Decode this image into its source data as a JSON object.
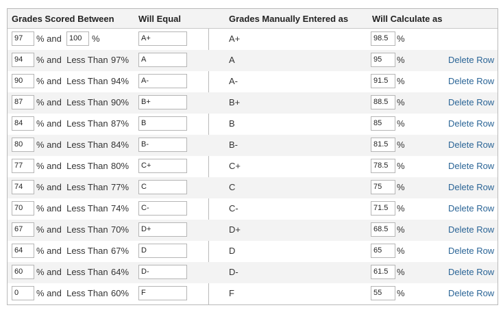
{
  "headers": {
    "scored_between": "Grades Scored Between",
    "will_equal": "Will Equal",
    "manually_entered": "Grades Manually Entered as",
    "will_calculate": "Will Calculate as"
  },
  "pct_and": "% and",
  "pct_and_less_than": "% and  Less Than",
  "pct_sign": "%",
  "rows": [
    {
      "low": "97",
      "high": "100",
      "less_than": "",
      "grade": "A+",
      "manual": "A+",
      "calc": "98.5",
      "delete": ""
    },
    {
      "low": "94",
      "high": "",
      "less_than": "97%",
      "grade": "A",
      "manual": "A",
      "calc": "95",
      "delete": "Delete Row"
    },
    {
      "low": "90",
      "high": "",
      "less_than": "94%",
      "grade": "A-",
      "manual": "A-",
      "calc": "91.5",
      "delete": "Delete Row"
    },
    {
      "low": "87",
      "high": "",
      "less_than": "90%",
      "grade": "B+",
      "manual": "B+",
      "calc": "88.5",
      "delete": "Delete Row"
    },
    {
      "low": "84",
      "high": "",
      "less_than": "87%",
      "grade": "B",
      "manual": "B",
      "calc": "85",
      "delete": "Delete Row"
    },
    {
      "low": "80",
      "high": "",
      "less_than": "84%",
      "grade": "B-",
      "manual": "B-",
      "calc": "81.5",
      "delete": "Delete Row"
    },
    {
      "low": "77",
      "high": "",
      "less_than": "80%",
      "grade": "C+",
      "manual": "C+",
      "calc": "78.5",
      "delete": "Delete Row"
    },
    {
      "low": "74",
      "high": "",
      "less_than": "77%",
      "grade": "C",
      "manual": "C",
      "calc": "75",
      "delete": "Delete Row"
    },
    {
      "low": "70",
      "high": "",
      "less_than": "74%",
      "grade": "C-",
      "manual": "C-",
      "calc": "71.5",
      "delete": "Delete Row"
    },
    {
      "low": "67",
      "high": "",
      "less_than": "70%",
      "grade": "D+",
      "manual": "D+",
      "calc": "68.5",
      "delete": "Delete Row"
    },
    {
      "low": "64",
      "high": "",
      "less_than": "67%",
      "grade": "D",
      "manual": "D",
      "calc": "65",
      "delete": "Delete Row"
    },
    {
      "low": "60",
      "high": "",
      "less_than": "64%",
      "grade": "D-",
      "manual": "D-",
      "calc": "61.5",
      "delete": "Delete Row"
    },
    {
      "low": "0",
      "high": "",
      "less_than": "60%",
      "grade": "F",
      "manual": "F",
      "calc": "55",
      "delete": "Delete Row"
    }
  ]
}
